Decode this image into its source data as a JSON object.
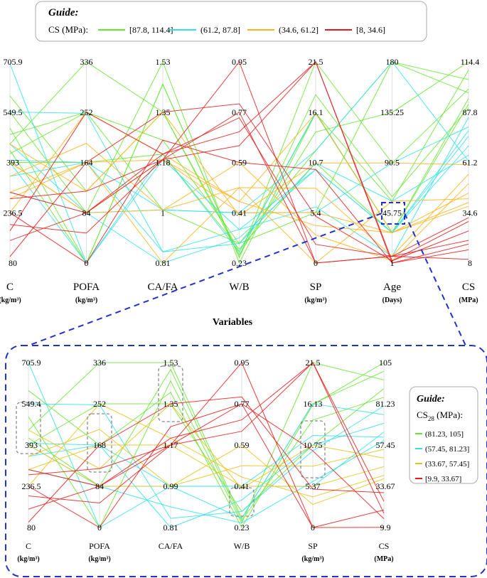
{
  "top_guide": {
    "title": "Guide:",
    "label": "CS (MPa):",
    "entries": [
      {
        "label": "[87.8, 114.4]",
        "color": "#66e633"
      },
      {
        "label": "(61.2, 87.8]",
        "color": "#33e0e8"
      },
      {
        "label": "(34.6, 61.2]",
        "color": "#ffb31a"
      },
      {
        "label": "[8, 34.6]",
        "color": "#e61a1a"
      }
    ]
  },
  "bottom_guide": {
    "title": "Guide:",
    "label_main": "CS",
    "label_sub": "28",
    "label_unit": " (MPa):",
    "entries": [
      {
        "label": "(81.23, 105]",
        "color": "#66e633"
      },
      {
        "label": "(57.45, 81.23]",
        "color": "#33e0e8"
      },
      {
        "label": "(33.67, 57.45]",
        "color": "#e6c21a"
      },
      {
        "label": "[9.9, 33.67]",
        "color": "#e61a1a"
      }
    ]
  },
  "variables_label": "Variables",
  "colors": {
    "inset_border": "#2233cc",
    "highlight_box": "#2233cc",
    "dashed_boxes": "#888888",
    "axis": "#dddddd"
  },
  "chart_data": [
    {
      "type": "parallel_coordinates",
      "axes": [
        {
          "name": "C",
          "unit": "(kg/m³)",
          "min": 80,
          "max": 705.9,
          "ticks": [
            "705.9",
            "549.5",
            "393",
            "236.5",
            "80"
          ]
        },
        {
          "name": "POFA",
          "unit": "(kg/m³)",
          "min": 0,
          "max": 336,
          "ticks": [
            "336",
            "252",
            "164",
            "84",
            "0"
          ]
        },
        {
          "name": "CA/FA",
          "unit": "",
          "min": 0.81,
          "max": 1.53,
          "ticks": [
            "1.53",
            "1.35",
            "1.18",
            "1",
            "0.81"
          ]
        },
        {
          "name": "W/B",
          "unit": "",
          "min": 0.23,
          "max": 0.95,
          "ticks": [
            "0.95",
            "0.77",
            "0.59",
            "0.41",
            "0.23"
          ]
        },
        {
          "name": "SP",
          "unit": "(kg/m³)",
          "min": 0,
          "max": 21.5,
          "ticks": [
            "21.5",
            "16.1",
            "10.7",
            "5.4",
            "0"
          ]
        },
        {
          "name": "Age",
          "unit": "(Days)",
          "min": 1,
          "max": 180,
          "ticks": [
            "180",
            "135.25",
            "90.5",
            "45.75",
            "1"
          ]
        },
        {
          "name": "CS",
          "unit": "(MPa)",
          "min": 8,
          "max": 114.4,
          "ticks": [
            "114.4",
            "87.8",
            "61.2",
            "34.6",
            "8"
          ]
        }
      ],
      "series": [
        {
          "band": "[87.8, 114.4]",
          "color": "#66e633",
          "lines": [
            [
              450,
              336,
              1.35,
              0.27,
              16.1,
              28,
              95
            ],
            [
              500,
              0,
              1.45,
              0.25,
              21.5,
              90,
              100
            ],
            [
              420,
              252,
              1.25,
              0.3,
              12,
              180,
              105
            ],
            [
              550,
              84,
              1.53,
              0.23,
              16,
              56,
              110
            ],
            [
              393,
              168,
              1.2,
              0.28,
              10.7,
              28,
              92
            ],
            [
              600,
              120,
              1.35,
              0.26,
              14,
              135,
              114.4
            ],
            [
              480,
              252,
              1.0,
              0.3,
              5.4,
              180,
              98
            ],
            [
              430,
              0,
              1.45,
              0.25,
              18,
              60,
              90
            ]
          ]
        },
        {
          "band": "(61.2, 87.8]",
          "color": "#33e0e8",
          "lines": [
            [
              700,
              0,
              1.2,
              0.27,
              16,
              28,
              75
            ],
            [
              400,
              168,
              0.85,
              0.35,
              10,
              28,
              70
            ],
            [
              300,
              84,
              1.0,
              0.41,
              5.4,
              90,
              80
            ],
            [
              550,
              250,
              0.85,
              0.3,
              10.7,
              56,
              65
            ],
            [
              393,
              0,
              1.18,
              0.35,
              6,
              7,
              85
            ],
            [
              350,
              168,
              1.0,
              0.41,
              12,
              180,
              62
            ],
            [
              450,
              84,
              0.81,
              0.32,
              10,
              28,
              78
            ]
          ]
        },
        {
          "band": "(34.6, 61.2]",
          "color": "#ffb31a",
          "lines": [
            [
              300,
              168,
              1.18,
              0.41,
              5.4,
              28,
              45
            ],
            [
              393,
              84,
              1.0,
              0.5,
              8,
              7,
              55
            ],
            [
              236.5,
              252,
              1.2,
              0.45,
              4,
              28,
              40
            ],
            [
              450,
              120,
              1.35,
              0.4,
              10.7,
              90,
              60
            ],
            [
              350,
              200,
              1.0,
              0.59,
              3,
              3,
              50
            ],
            [
              393,
              84,
              1.18,
              0.45,
              16,
              28,
              38
            ],
            [
              280,
              168,
              0.81,
              0.5,
              0,
              56,
              42
            ]
          ]
        },
        {
          "band": "[8, 34.6]",
          "color": "#e61a1a",
          "lines": [
            [
              200,
              50,
              1.18,
              0.77,
              0,
              7,
              20
            ],
            [
              150,
              84,
              1.2,
              0.7,
              21.5,
              3,
              25
            ],
            [
              236.5,
              0,
              1.25,
              0.59,
              10,
              1,
              15
            ],
            [
              280,
              120,
              1.18,
              0.95,
              0,
              7,
              10
            ],
            [
              100,
              168,
              1.35,
              0.8,
              5,
              3,
              30
            ],
            [
              300,
              84,
              1.18,
              0.65,
              21.5,
              1,
              18
            ],
            [
              180,
              252,
              1.2,
              0.75,
              2,
              7,
              32
            ]
          ]
        }
      ]
    },
    {
      "type": "parallel_coordinates",
      "axes": [
        {
          "name": "C",
          "unit": "(kg/m³)",
          "min": 80,
          "max": 705.9,
          "ticks": [
            "705.9",
            "549.4",
            "393",
            "236.5",
            "80"
          ]
        },
        {
          "name": "POFA",
          "unit": "(kg/m³)",
          "min": 0,
          "max": 336,
          "ticks": [
            "336",
            "252",
            "168",
            "84",
            "0"
          ]
        },
        {
          "name": "CA/FA",
          "unit": "",
          "min": 0.81,
          "max": 1.53,
          "ticks": [
            "1.53",
            "1.35",
            "1.17",
            "0.99",
            "0.81"
          ]
        },
        {
          "name": "W/B",
          "unit": "",
          "min": 0.23,
          "max": 0.95,
          "ticks": [
            "0.95",
            "0.77",
            "0.59",
            "0.41",
            "0.23"
          ]
        },
        {
          "name": "SP",
          "unit": "(kg/m³)",
          "min": 0,
          "max": 21.5,
          "ticks": [
            "21.5",
            "16.13",
            "10.75",
            "5.37",
            "0"
          ]
        },
        {
          "name": "CS",
          "unit": "(MPa)",
          "min": 9.9,
          "max": 105,
          "ticks": [
            "105",
            "81.23",
            "57.45",
            "33.67",
            "9.9"
          ]
        }
      ],
      "series": [
        {
          "band": "(81.23, 105]",
          "color": "#66e633",
          "lines": [
            [
              450,
              336,
              1.53,
              0.27,
              16.13,
              100
            ],
            [
              500,
              0,
              1.45,
              0.25,
              21.5,
              95
            ],
            [
              393,
              252,
              1.35,
              0.3,
              10.75,
              90
            ],
            [
              600,
              168,
              1.4,
              0.23,
              16,
              105
            ],
            [
              420,
              84,
              1.5,
              0.26,
              14,
              85
            ]
          ]
        },
        {
          "band": "(57.45, 81.23]",
          "color": "#33e0e8",
          "lines": [
            [
              705.9,
              0,
              0.99,
              0.27,
              16.13,
              75
            ],
            [
              400,
              168,
              0.81,
              0.35,
              10.75,
              70
            ],
            [
              300,
              84,
              0.99,
              0.41,
              5.37,
              65
            ],
            [
              549.4,
              250,
              0.85,
              0.3,
              10,
              80
            ],
            [
              393,
              84,
              0.9,
              0.25,
              6,
              60
            ],
            [
              350,
              168,
              0.99,
              0.41,
              12,
              62
            ]
          ]
        },
        {
          "band": "(33.67, 57.45]",
          "color": "#e6c21a",
          "lines": [
            [
              300,
              168,
              1.17,
              0.41,
              5.37,
              45
            ],
            [
              393,
              84,
              0.99,
              0.5,
              8,
              55
            ],
            [
              236.5,
              252,
              1.2,
              0.45,
              4,
              40
            ],
            [
              450,
              120,
              1.35,
              0.4,
              10.75,
              50
            ],
            [
              350,
              200,
              0.99,
              0.59,
              3,
              38
            ]
          ]
        },
        {
          "band": "[9.9, 33.67]",
          "color": "#e61a1a",
          "lines": [
            [
              200,
              50,
              1.17,
              0.77,
              0,
              20
            ],
            [
              150,
              84,
              1.2,
              0.7,
              21.5,
              25
            ],
            [
              236.5,
              0,
              1.25,
              0.77,
              10,
              15
            ],
            [
              280,
              120,
              1.17,
              0.95,
              0,
              10
            ],
            [
              100,
              168,
              1.35,
              0.8,
              5,
              30
            ],
            [
              300,
              84,
              1.17,
              0.65,
              21.5,
              18
            ]
          ]
        }
      ]
    }
  ]
}
